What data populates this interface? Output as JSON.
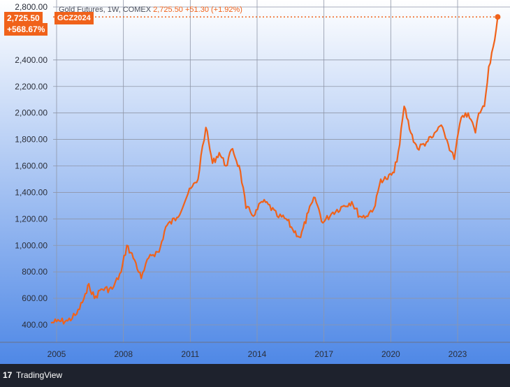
{
  "header": {
    "symbol_desc": "Gold Futures, 1W, COMEX",
    "last_price": "2,725.50",
    "change": "+51.30 (+1.92%)"
  },
  "badges": {
    "price": "2,725.50",
    "pct": "+568.67%",
    "ticker": "GCZ2024"
  },
  "footer": {
    "logo": "17",
    "brand": "TradingView"
  },
  "colors": {
    "line": "#f0621a",
    "bg_top": "#ffffff",
    "bg_bottom": "#4f88e6",
    "grid": "#8f96a8",
    "axis_text": "#2a2e39"
  },
  "chart_data": {
    "type": "line",
    "grid": true,
    "ylim": [
      400,
      2800
    ],
    "y_ticks": [
      "400.00",
      "600.00",
      "800.00",
      "1,000.00",
      "1,200.00",
      "1,400.00",
      "1,600.00",
      "1,800.00",
      "2,000.00",
      "2,200.00",
      "2,400.00",
      "2,800.00"
    ],
    "x_ticks": [
      "2005",
      "2008",
      "2011",
      "2014",
      "2017",
      "2020",
      "2023"
    ],
    "series": [
      {
        "x": [
          2004.75,
          2005.0,
          2005.5,
          2005.9,
          2006.35,
          2006.45,
          2006.7,
          2007.0,
          2007.5,
          2007.9,
          2008.15,
          2008.5,
          2008.8,
          2009.2,
          2009.6,
          2009.9,
          2010.4,
          2010.9,
          2011.35,
          2011.55,
          2011.7,
          2012.0,
          2012.3,
          2012.6,
          2012.9,
          2013.25,
          2013.5,
          2013.9,
          2014.2,
          2014.5,
          2014.9,
          2015.3,
          2015.6,
          2015.95,
          2016.3,
          2016.6,
          2016.95,
          2017.4,
          2017.9,
          2018.25,
          2018.6,
          2018.9,
          2019.3,
          2019.55,
          2019.8,
          2020.15,
          2020.4,
          2020.6,
          2020.9,
          2021.2,
          2021.6,
          2021.9,
          2022.2,
          2022.4,
          2022.7,
          2022.85,
          2023.1,
          2023.35,
          2023.6,
          2023.8,
          2023.95,
          2024.2,
          2024.4,
          2024.6,
          2024.8
        ],
        "y": [
          415,
          425,
          430,
          480,
          640,
          710,
          600,
          670,
          670,
          800,
          1000,
          890,
          750,
          930,
          950,
          1140,
          1210,
          1390,
          1500,
          1750,
          1890,
          1620,
          1700,
          1600,
          1730,
          1560,
          1280,
          1230,
          1330,
          1310,
          1220,
          1200,
          1120,
          1060,
          1250,
          1360,
          1170,
          1250,
          1300,
          1330,
          1220,
          1220,
          1300,
          1500,
          1500,
          1550,
          1760,
          2050,
          1850,
          1730,
          1780,
          1820,
          1900,
          1850,
          1710,
          1650,
          1920,
          2000,
          1950,
          1850,
          2000,
          2050,
          2350,
          2500,
          2725
        ]
      }
    ]
  }
}
